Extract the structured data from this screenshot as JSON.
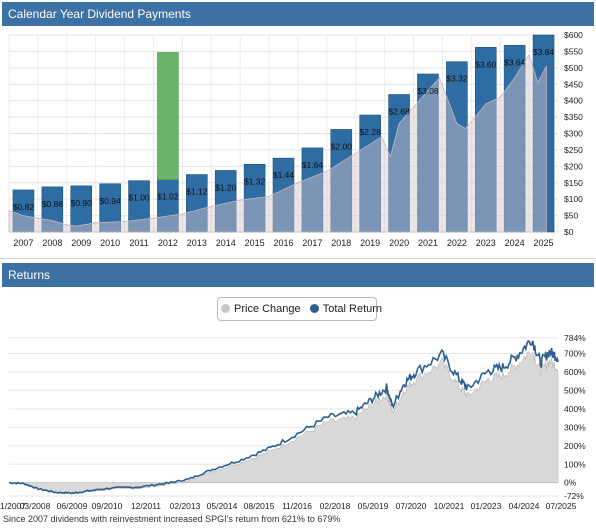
{
  "dividend_panel": {
    "title": "Calendar Year Dividend Payments"
  },
  "returns_panel": {
    "title": "Returns"
  },
  "footnote": "Since 2007 dividends with reinvestment increased SPGI's return from 621% to 679%",
  "colors": {
    "header": "#3d70a3",
    "bar": "#2e6ca4",
    "bar_highlight": "#6bb46b",
    "price_area": "#d9d9d9",
    "total_return": "#2f5f8f"
  },
  "chart_data": [
    {
      "type": "bar",
      "categories": [
        "2007",
        "2008",
        "2009",
        "2010",
        "2011",
        "2012",
        "2013",
        "2014",
        "2015",
        "2016",
        "2017",
        "2018",
        "2019",
        "2020",
        "2021",
        "2022",
        "2023",
        "2024",
        "2025"
      ],
      "values": [
        0.82,
        0.88,
        0.9,
        0.94,
        1.0,
        1.02,
        1.12,
        1.2,
        1.32,
        1.44,
        1.64,
        2.0,
        2.28,
        2.68,
        3.08,
        3.32,
        3.6,
        3.64,
        3.84
      ],
      "value_labels": [
        "$0.82",
        "$0.88",
        "$0.90",
        "$0.94",
        "$1.00",
        "$1.02",
        "$1.12",
        "$1.20",
        "$1.32",
        "$1.44",
        "$1.64",
        "$2.00",
        "$2.28",
        "$2.68",
        "$3.08",
        "$3.32",
        "$3.60",
        "$3.64",
        "$3.84"
      ],
      "special_dividend": {
        "category": "2012",
        "top_value": 3.5
      },
      "y_right_ticks": [
        "$0",
        "$50",
        "$100",
        "$150",
        "$200",
        "$250",
        "$300",
        "$350",
        "$400",
        "$450",
        "$500",
        "$550",
        "$600"
      ],
      "y_right_range": [
        0,
        600
      ],
      "y_left_range": [
        0,
        3.84
      ],
      "price_overlay": {
        "x": [
          2007,
          2007.5,
          2008,
          2008.5,
          2009,
          2009.3,
          2010,
          2011,
          2012,
          2013,
          2014,
          2015,
          2016,
          2017,
          2018,
          2019,
          2019.9,
          2020.2,
          2020.5,
          2021,
          2021.9,
          2022.5,
          2022.8,
          2023.5,
          2024,
          2024.5,
          2025,
          2025.3,
          2025.6
        ],
        "y": [
          65,
          50,
          42,
          35,
          22,
          18,
          28,
          32,
          42,
          55,
          78,
          97,
          108,
          150,
          185,
          240,
          290,
          230,
          330,
          380,
          470,
          330,
          315,
          390,
          410,
          470,
          540,
          455,
          505
        ]
      },
      "grid": true
    },
    {
      "type": "area",
      "legend": [
        "Price Change",
        "Total Return"
      ],
      "legend_placement": "top-center",
      "y_ticks": [
        "-72%",
        "0%",
        "100%",
        "200%",
        "300%",
        "400%",
        "500%",
        "600%",
        "700%",
        "784%"
      ],
      "y_range": [
        -72,
        784
      ],
      "x_ticks": [
        "1/2007",
        "03/2008",
        "06/2009",
        "09/2010",
        "12/2011",
        "02/2013",
        "05/2014",
        "08/2015",
        "11/2016",
        "02/2018",
        "05/2019",
        "07/2020",
        "10/2021",
        "01/2023",
        "04/2024",
        "07/2025"
      ],
      "x_range": [
        2007.0,
        2025.9
      ],
      "series": [
        {
          "name": "Price Change",
          "x": [
            2007.0,
            2007.5,
            2008.0,
            2008.6,
            2009.2,
            2009.7,
            2010.5,
            2011.5,
            2012.5,
            2013.2,
            2014.0,
            2015.0,
            2016.0,
            2017.0,
            2018.0,
            2018.9,
            2019.5,
            2020.0,
            2020.2,
            2020.6,
            2021.0,
            2021.9,
            2022.5,
            2022.8,
            2023.5,
            2024.0,
            2024.5,
            2025.0,
            2025.3,
            2025.6,
            2025.9
          ],
          "y": [
            0,
            -5,
            -35,
            -55,
            -60,
            -50,
            -35,
            -30,
            -10,
            10,
            60,
            110,
            170,
            250,
            330,
            350,
            420,
            480,
            380,
            500,
            560,
            650,
            520,
            470,
            560,
            580,
            640,
            720,
            600,
            660,
            621
          ]
        },
        {
          "name": "Total Return",
          "x": [
            2007.0,
            2007.5,
            2008.0,
            2008.6,
            2009.2,
            2009.7,
            2010.5,
            2011.5,
            2012.5,
            2013.2,
            2014.0,
            2015.0,
            2016.0,
            2017.0,
            2018.0,
            2018.9,
            2019.5,
            2020.0,
            2020.2,
            2020.6,
            2021.0,
            2021.9,
            2022.5,
            2022.8,
            2023.5,
            2024.0,
            2024.5,
            2025.0,
            2025.3,
            2025.6,
            2025.9
          ],
          "y": [
            0,
            -4,
            -33,
            -52,
            -56,
            -45,
            -29,
            -23,
            -1,
            20,
            72,
            125,
            188,
            272,
            356,
            378,
            452,
            516,
            412,
            538,
            600,
            695,
            560,
            510,
            605,
            625,
            690,
            780,
            650,
            710,
            679
          ]
        }
      ],
      "grid": true
    }
  ]
}
